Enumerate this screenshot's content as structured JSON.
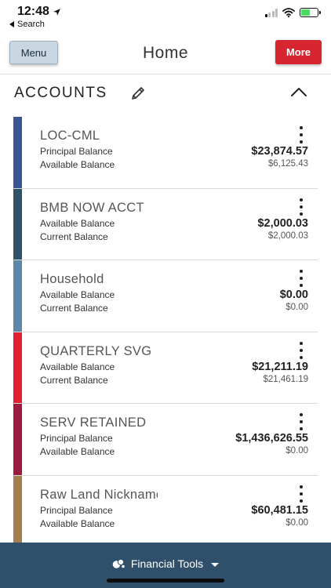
{
  "status_bar": {
    "time": "12:48",
    "back_label": "Search"
  },
  "header": {
    "menu_label": "Menu",
    "title": "Home",
    "more_label": "More"
  },
  "section": {
    "title": "ACCOUNTS"
  },
  "accounts": [
    {
      "name": "LOC-CML",
      "row1_label": "Principal Balance",
      "row1_value": "$23,874.57",
      "row2_label": "Available Balance",
      "row2_value": "$6,125.43",
      "color": "#3a5494"
    },
    {
      "name": "BMB NOW ACCT",
      "row1_label": "Available Balance",
      "row1_value": "$2,000.03",
      "row2_label": "Current Balance",
      "row2_value": "$2,000.03",
      "color": "#2e5068"
    },
    {
      "name": "Household",
      "row1_label": "Available Balance",
      "row1_value": "$0.00",
      "row2_label": "Current Balance",
      "row2_value": "$0.00",
      "color": "#5b87a8"
    },
    {
      "name": "QUARTERLY SVG",
      "row1_label": "Available Balance",
      "row1_value": "$21,211.19",
      "row2_label": "Current Balance",
      "row2_value": "$21,461.19",
      "color": "#e0202f"
    },
    {
      "name": "SERV RETAINED",
      "row1_label": "Principal Balance",
      "row1_value": "$1,436,626.55",
      "row2_label": "Available Balance",
      "row2_value": "$0.00",
      "color": "#9c1a40"
    },
    {
      "name": "Raw Land Nickname",
      "row1_label": "Principal Balance",
      "row1_value": "$60,481.15",
      "row2_label": "Available Balance",
      "row2_value": "$0.00",
      "color": "#a47e4e"
    }
  ],
  "footer": {
    "label": "Financial Tools"
  },
  "icons": {
    "edit": "pencil-icon",
    "collapse": "chevron-up-icon",
    "account_menu": "kebab-menu-icon",
    "footer": "coins-icon"
  }
}
